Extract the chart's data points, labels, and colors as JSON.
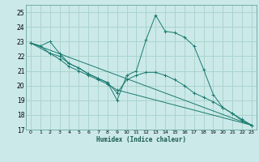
{
  "xlabel": "Humidex (Indice chaleur)",
  "xlim": [
    -0.5,
    23.5
  ],
  "ylim": [
    17,
    25.5
  ],
  "xticks": [
    0,
    1,
    2,
    3,
    4,
    5,
    6,
    7,
    8,
    9,
    10,
    11,
    12,
    13,
    14,
    15,
    16,
    17,
    18,
    19,
    20,
    21,
    22,
    23
  ],
  "yticks": [
    17,
    18,
    19,
    20,
    21,
    22,
    23,
    24,
    25
  ],
  "bg_color": "#cbe9e9",
  "line_color": "#1a7a6e",
  "grid_color": "#aad4cc",
  "line1_x": [
    0,
    1,
    2,
    3,
    4,
    5,
    6,
    7,
    8,
    9,
    10,
    11,
    12,
    13,
    14,
    15,
    16,
    17,
    18,
    19,
    20,
    21,
    22,
    23
  ],
  "line1_y": [
    22.9,
    22.7,
    23.0,
    22.2,
    21.5,
    21.2,
    20.8,
    20.5,
    20.2,
    19.0,
    20.7,
    21.0,
    23.1,
    24.8,
    23.7,
    23.6,
    23.3,
    22.7,
    21.1,
    19.4,
    18.5,
    18.1,
    17.6,
    17.3
  ],
  "line2_x": [
    0,
    1,
    2,
    3,
    4,
    5,
    6,
    7,
    8,
    9,
    10,
    11,
    12,
    13,
    14,
    15,
    16,
    17,
    18,
    19,
    20,
    21,
    22,
    23
  ],
  "line2_y": [
    22.9,
    22.7,
    22.2,
    22.0,
    21.5,
    21.2,
    20.8,
    20.5,
    20.2,
    19.5,
    20.4,
    20.7,
    20.9,
    20.9,
    20.7,
    20.4,
    20.0,
    19.5,
    19.2,
    18.9,
    18.5,
    18.1,
    17.7,
    17.3
  ],
  "line3_x": [
    0,
    2,
    3,
    4,
    5,
    6,
    7,
    8,
    9,
    23
  ],
  "line3_y": [
    22.9,
    22.2,
    21.8,
    21.3,
    21.0,
    20.7,
    20.4,
    20.1,
    19.7,
    17.3
  ],
  "line4_x": [
    0,
    23
  ],
  "line4_y": [
    22.9,
    17.3
  ]
}
